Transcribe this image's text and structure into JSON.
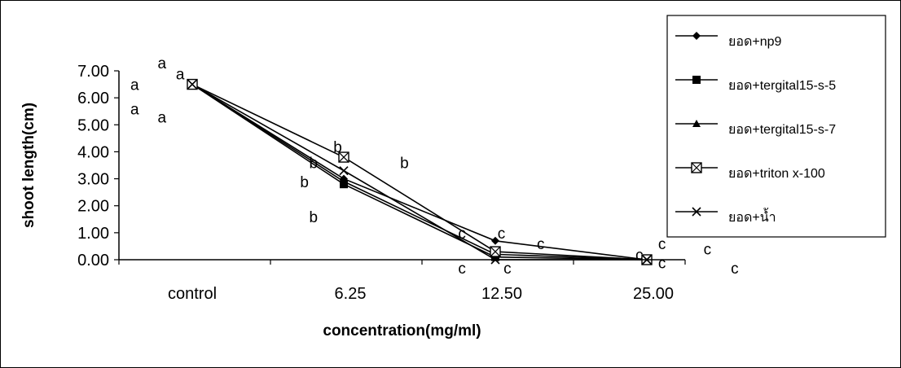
{
  "chart_data": {
    "type": "line",
    "title": "",
    "xlabel": "concentration(mg/ml)",
    "ylabel": "shoot length(cm)",
    "categories": [
      "control",
      "6.25",
      "12.50",
      "25.00"
    ],
    "ylim": [
      0,
      7
    ],
    "yticks": [
      "0.00",
      "1.00",
      "2.00",
      "3.00",
      "4.00",
      "5.00",
      "6.00",
      "7.00"
    ],
    "grid": false,
    "legend": "right",
    "series": [
      {
        "name": "ยอด+np9",
        "marker": "diamond",
        "values": [
          6.5,
          3.0,
          0.7,
          0.0
        ]
      },
      {
        "name": "ยอด+tergital15-s-5",
        "marker": "square",
        "values": [
          6.5,
          2.8,
          0.1,
          0.0
        ]
      },
      {
        "name": "ยอด+tergital15-s-7",
        "marker": "triangle",
        "values": [
          6.5,
          2.9,
          0.2,
          0.0
        ]
      },
      {
        "name": "ยอด+triton x-100",
        "marker": "boxx",
        "values": [
          6.5,
          3.8,
          0.3,
          0.0
        ]
      },
      {
        "name": "ยอด+น้ำ",
        "marker": "x",
        "values": [
          6.5,
          3.3,
          0.0,
          0.0
        ]
      }
    ],
    "annotations": [
      {
        "text": "a",
        "cat": -0.2,
        "y": 7.3
      },
      {
        "text": "a",
        "cat": -0.08,
        "y": 6.9
      },
      {
        "text": "a",
        "cat": -0.38,
        "y": 6.5
      },
      {
        "text": "a",
        "cat": -0.38,
        "y": 5.6
      },
      {
        "text": "a",
        "cat": -0.2,
        "y": 5.3
      },
      {
        "text": "b",
        "cat": 0.96,
        "y": 4.2
      },
      {
        "text": "b",
        "cat": 0.8,
        "y": 3.6
      },
      {
        "text": "b",
        "cat": 1.4,
        "y": 3.6
      },
      {
        "text": "b",
        "cat": 0.74,
        "y": 2.9
      },
      {
        "text": "b",
        "cat": 0.8,
        "y": 1.6
      },
      {
        "text": "c",
        "cat": 1.78,
        "y": 1.0
      },
      {
        "text": "c",
        "cat": 2.04,
        "y": 1.0
      },
      {
        "text": "c",
        "cat": 2.3,
        "y": 0.6
      },
      {
        "text": "c",
        "cat": 1.78,
        "y": -0.3
      },
      {
        "text": "c",
        "cat": 2.08,
        "y": -0.3
      },
      {
        "text": "c",
        "cat": 3.1,
        "y": 0.6
      },
      {
        "text": "c",
        "cat": 3.4,
        "y": 0.4
      },
      {
        "text": "c",
        "cat": 2.95,
        "y": 0.2
      },
      {
        "text": "c",
        "cat": 3.1,
        "y": -0.1
      },
      {
        "text": "c",
        "cat": 3.58,
        "y": -0.3
      }
    ]
  }
}
